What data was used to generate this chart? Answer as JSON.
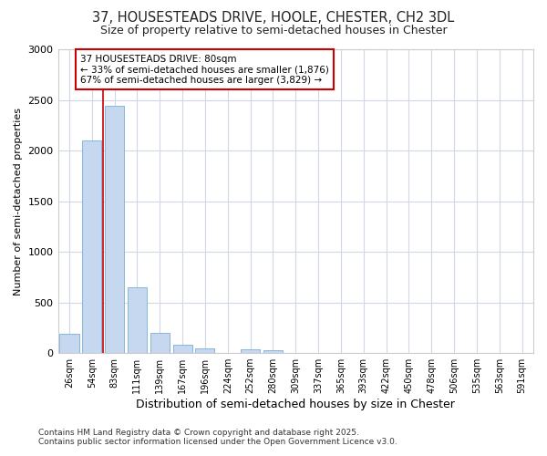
{
  "title_line1": "37, HOUSESTEADS DRIVE, HOOLE, CHESTER, CH2 3DL",
  "title_line2": "Size of property relative to semi-detached houses in Chester",
  "xlabel": "Distribution of semi-detached houses by size in Chester",
  "ylabel": "Number of semi-detached properties",
  "bar_color": "#c5d8f0",
  "bar_edge_color": "#7aafd4",
  "annotation_title": "37 HOUSESTEADS DRIVE: 80sqm",
  "annotation_line2": "← 33% of semi-detached houses are smaller (1,876)",
  "annotation_line3": "67% of semi-detached houses are larger (3,829) →",
  "vline_color": "#cc0000",
  "categories": [
    "26sqm",
    "54sqm",
    "83sqm",
    "111sqm",
    "139sqm",
    "167sqm",
    "196sqm",
    "224sqm",
    "252sqm",
    "280sqm",
    "309sqm",
    "337sqm",
    "365sqm",
    "393sqm",
    "422sqm",
    "450sqm",
    "478sqm",
    "506sqm",
    "535sqm",
    "563sqm",
    "591sqm"
  ],
  "values": [
    190,
    2100,
    2440,
    650,
    200,
    82,
    50,
    5,
    35,
    30,
    5,
    0,
    0,
    0,
    0,
    0,
    0,
    0,
    0,
    0,
    0
  ],
  "ylim": [
    0,
    3000
  ],
  "yticks": [
    0,
    500,
    1000,
    1500,
    2000,
    2500,
    3000
  ],
  "footer_line1": "Contains HM Land Registry data © Crown copyright and database right 2025.",
  "footer_line2": "Contains public sector information licensed under the Open Government Licence v3.0.",
  "bg_color": "#ffffff",
  "plot_bg_color": "#ffffff",
  "grid_color": "#d0d8e8"
}
